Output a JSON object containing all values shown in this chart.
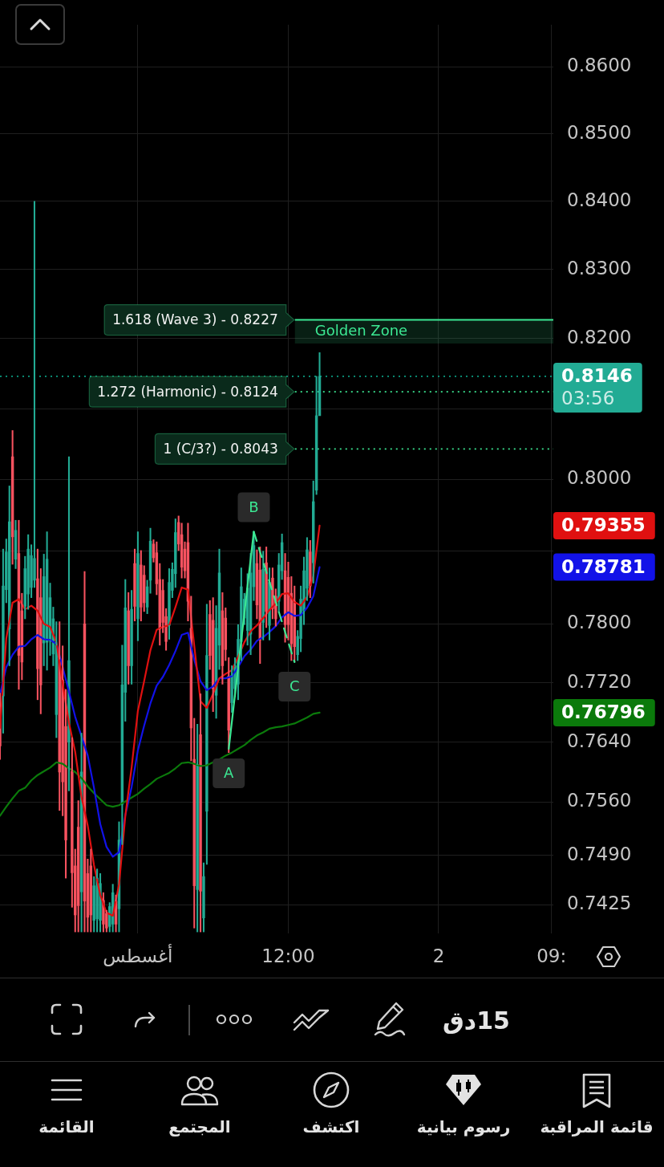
{
  "chart_data": {
    "type": "candlestick",
    "log": true,
    "grid": true,
    "x": [
      "--07-31T13:00",
      "--07-31T13:15",
      "--07-31T13:30",
      "--07-31T13:45",
      "--07-31T14:00",
      "--07-31T14:15",
      "--07-31T14:30",
      "--07-31T14:45",
      "--07-31T15:00",
      "--07-31T15:15",
      "--07-31T15:30",
      "--07-31T15:45",
      "--07-31T16:00",
      "--07-31T16:15",
      "--07-31T16:30",
      "--07-31T16:45",
      "--07-31T17:00",
      "--07-31T17:15",
      "--07-31T17:30",
      "--07-31T17:45",
      "--07-31T18:00",
      "--07-31T18:15",
      "--07-31T18:30",
      "--07-31T18:45",
      "--07-31T19:00",
      "--07-31T19:15",
      "--07-31T19:30",
      "--07-31T19:45",
      "--07-31T20:00",
      "--07-31T20:15",
      "--07-31T20:30",
      "--07-31T20:45",
      "--07-31T21:00",
      "--07-31T21:15",
      "--07-31T21:30",
      "--07-31T21:45",
      "--07-31T22:00",
      "--07-31T22:15",
      "--07-31T22:30",
      "--07-31T22:45",
      "--07-31T23:00",
      "--07-31T23:15",
      "--07-31T23:30",
      "--07-31T23:45",
      "--08-01T00:00",
      "--08-01T00:15",
      "--08-01T00:30",
      "--08-01T00:45",
      "--08-01T01:00",
      "--08-01T01:15",
      "--08-01T01:30",
      "--08-01T01:45",
      "--08-01T02:00",
      "--08-01T02:15",
      "--08-01T02:30",
      "--08-01T02:45",
      "--08-01T03:00",
      "--08-01T03:15",
      "--08-01T03:30",
      "--08-01T03:45",
      "--08-01T04:00",
      "--08-01T04:15",
      "--08-01T04:30",
      "--08-01T04:45",
      "--08-01T05:00",
      "--08-01T05:15",
      "--08-01T05:30",
      "--08-01T05:45",
      "--08-01T06:00",
      "--08-01T06:15",
      "--08-01T06:30",
      "--08-01T06:45",
      "--08-01T07:00",
      "--08-01T07:15",
      "--08-01T07:30",
      "--08-01T07:45",
      "--08-01T08:00",
      "--08-01T08:15",
      "--08-01T08:30",
      "--08-01T08:45",
      "--08-01T09:00",
      "--08-01T09:15",
      "--08-01T09:30",
      "--08-01T09:45",
      "--08-01T10:00",
      "--08-01T10:15",
      "--08-01T10:30",
      "--08-01T10:45",
      "--08-01T11:00",
      "--08-01T11:15",
      "--08-01T11:30",
      "--08-01T11:45",
      "--08-01T12:00",
      "--08-01T12:15",
      "--08-01T12:30",
      "--08-01T12:45",
      "--08-01T13:00",
      "--08-01T13:15",
      "--08-01T13:30",
      "--08-01T13:45",
      "--08-01T14:00",
      "--08-01T14:15",
      "--08-01T14:30"
    ],
    "ohlc": [
      [
        0.7688,
        0.7706,
        0.7617,
        0.7635
      ],
      [
        0.7702,
        0.7903,
        0.7652,
        0.7852
      ],
      [
        0.7847,
        0.7917,
        0.7829,
        0.7899
      ],
      [
        0.7793,
        0.7991,
        0.7743,
        0.7941
      ],
      [
        0.8032,
        0.8069,
        0.7882,
        0.792
      ],
      [
        0.7889,
        0.7943,
        0.7876,
        0.7929
      ],
      [
        0.7897,
        0.7943,
        0.7711,
        0.7757
      ],
      [
        0.7818,
        0.7842,
        0.7724,
        0.7748
      ],
      [
        0.7824,
        0.7893,
        0.7807,
        0.7876
      ],
      [
        0.7841,
        0.7923,
        0.782,
        0.7903
      ],
      [
        0.785,
        0.7909,
        0.7836,
        0.7894
      ],
      [
        0.786,
        0.84,
        0.785,
        0.789
      ],
      [
        0.7862,
        0.7903,
        0.7697,
        0.7739
      ],
      [
        0.7836,
        0.7876,
        0.7678,
        0.7717
      ],
      [
        0.7774,
        0.7896,
        0.7743,
        0.7865
      ],
      [
        0.7775,
        0.7927,
        0.7737,
        0.7889
      ],
      [
        0.7777,
        0.7856,
        0.7757,
        0.7836
      ],
      [
        0.7759,
        0.7823,
        0.7743,
        0.7807
      ],
      [
        0.7677,
        0.7803,
        0.7646,
        0.7771
      ],
      [
        0.7752,
        0.7803,
        0.7549,
        0.76
      ],
      [
        0.7724,
        0.777,
        0.7542,
        0.7587
      ],
      [
        0.7661,
        0.7711,
        0.746,
        0.751
      ],
      [
        0.764,
        0.8032,
        0.7575,
        0.775
      ],
      [
        0.7601,
        0.7646,
        0.7422,
        0.7467
      ],
      [
        0.7476,
        0.7498,
        0.739,
        0.7412
      ],
      [
        0.7527,
        0.7562,
        0.739,
        0.7424
      ],
      [
        0.7442,
        0.7652,
        0.739,
        0.76
      ],
      [
        0.78,
        0.7872,
        0.739,
        0.743
      ],
      [
        0.7466,
        0.7485,
        0.739,
        0.7409
      ],
      [
        0.7476,
        0.7498,
        0.739,
        0.7412
      ],
      [
        0.7405,
        0.7462,
        0.739,
        0.745
      ],
      [
        0.7407,
        0.7472,
        0.739,
        0.746
      ],
      [
        0.7405,
        0.7466,
        0.739,
        0.7453
      ],
      [
        0.7431,
        0.7441,
        0.739,
        0.74
      ],
      [
        0.7414,
        0.7418,
        0.739,
        0.7395
      ],
      [
        0.7397,
        0.7428,
        0.739,
        0.7423
      ],
      [
        0.74,
        0.7452,
        0.739,
        0.7441
      ],
      [
        0.743,
        0.7438,
        0.739,
        0.74
      ],
      [
        0.742,
        0.7534,
        0.739,
        0.751
      ],
      [
        0.7557,
        0.7771,
        0.7504,
        0.7717
      ],
      [
        0.7707,
        0.7861,
        0.7668,
        0.7822
      ],
      [
        0.7818,
        0.7843,
        0.7718,
        0.7743
      ],
      [
        0.7743,
        0.7846,
        0.7718,
        0.782
      ],
      [
        0.7883,
        0.7903,
        0.7804,
        0.7824
      ],
      [
        0.7807,
        0.7927,
        0.7777,
        0.7897
      ],
      [
        0.7881,
        0.7901,
        0.7804,
        0.7823
      ],
      [
        0.7867,
        0.788,
        0.7817,
        0.7829
      ],
      [
        0.7823,
        0.786,
        0.7814,
        0.7851
      ],
      [
        0.786,
        0.7932,
        0.7842,
        0.7914
      ],
      [
        0.791,
        0.7916,
        0.7885,
        0.7891
      ],
      [
        0.7898,
        0.7913,
        0.784,
        0.7855
      ],
      [
        0.7861,
        0.7883,
        0.7771,
        0.7793
      ],
      [
        0.7846,
        0.7861,
        0.7788,
        0.7802
      ],
      [
        0.781,
        0.7821,
        0.7764,
        0.7776
      ],
      [
        0.7798,
        0.7876,
        0.7779,
        0.7857
      ],
      [
        0.7846,
        0.7884,
        0.7836,
        0.7875
      ],
      [
        0.7869,
        0.7945,
        0.785,
        0.7926
      ],
      [
        0.794,
        0.7949,
        0.7901,
        0.791
      ],
      [
        0.7923,
        0.7939,
        0.7863,
        0.7878
      ],
      [
        0.7903,
        0.7913,
        0.7863,
        0.7873
      ],
      [
        0.7912,
        0.7939,
        0.7804,
        0.7831
      ],
      [
        0.7794,
        0.7838,
        0.7615,
        0.7659
      ],
      [
        0.7617,
        0.7672,
        0.7395,
        0.745
      ],
      [
        0.7445,
        0.7664,
        0.739,
        0.761
      ],
      [
        0.765,
        0.7705,
        0.739,
        0.7443
      ],
      [
        0.7408,
        0.748,
        0.739,
        0.7462
      ],
      [
        0.7548,
        0.7827,
        0.7478,
        0.7757
      ],
      [
        0.7813,
        0.7832,
        0.7738,
        0.7757
      ],
      [
        0.7805,
        0.7836,
        0.7681,
        0.7712
      ],
      [
        0.7703,
        0.7825,
        0.7672,
        0.7794
      ],
      [
        0.7771,
        0.7903,
        0.7738,
        0.787
      ],
      [
        0.7818,
        0.7843,
        0.7718,
        0.7743
      ],
      [
        0.7808,
        0.7822,
        0.775,
        0.7765
      ],
      [
        0.7729,
        0.7754,
        0.7626,
        0.7656
      ],
      [
        0.7693,
        0.7743,
        0.768,
        0.773
      ],
      [
        0.7712,
        0.7754,
        0.7701,
        0.7743
      ],
      [
        0.7718,
        0.7799,
        0.7697,
        0.7779
      ],
      [
        0.7776,
        0.7877,
        0.775,
        0.7851
      ],
      [
        0.7808,
        0.7842,
        0.7799,
        0.7834
      ],
      [
        0.7791,
        0.7869,
        0.7771,
        0.7849
      ],
      [
        0.7786,
        0.7897,
        0.7758,
        0.787
      ],
      [
        0.7851,
        0.7927,
        0.7832,
        0.7908
      ],
      [
        0.7883,
        0.7902,
        0.7807,
        0.7826
      ],
      [
        0.7874,
        0.7906,
        0.7746,
        0.7778
      ],
      [
        0.7802,
        0.79,
        0.7778,
        0.7875
      ],
      [
        0.7884,
        0.7906,
        0.7795,
        0.7817
      ],
      [
        0.7798,
        0.7877,
        0.7778,
        0.7857
      ],
      [
        0.7863,
        0.7877,
        0.7807,
        0.7821
      ],
      [
        0.7838,
        0.7848,
        0.7797,
        0.7807
      ],
      [
        0.7831,
        0.7897,
        0.7816,
        0.7881
      ],
      [
        0.7873,
        0.7924,
        0.7861,
        0.7912
      ],
      [
        0.7873,
        0.7897,
        0.7775,
        0.7799
      ],
      [
        0.7864,
        0.7885,
        0.7778,
        0.7799
      ],
      [
        0.7842,
        0.7865,
        0.775,
        0.7773
      ],
      [
        0.7831,
        0.7852,
        0.7748,
        0.7769
      ],
      [
        0.7758,
        0.7791,
        0.775,
        0.7783
      ],
      [
        0.778,
        0.7852,
        0.7762,
        0.7834
      ],
      [
        0.7818,
        0.7892,
        0.7799,
        0.7873
      ],
      [
        0.7849,
        0.7919,
        0.7832,
        0.7902
      ],
      [
        0.7899,
        0.7915,
        0.7836,
        0.7852
      ],
      [
        0.7884,
        0.7998,
        0.7856,
        0.7969
      ],
      [
        0.7985,
        0.8146,
        0.7979,
        0.809
      ],
      [
        0.809,
        0.818,
        0.809,
        0.8146
      ]
    ],
    "colors": [
      "#f7525f",
      "#22ab94",
      "#22ab94",
      "#22ab94",
      "#f7525f",
      "#22ab94",
      "#f7525f",
      "#f7525f",
      "#22ab94",
      "#22ab94",
      "#22ab94",
      "#22ab94",
      "#f7525f",
      "#f7525f",
      "#22ab94",
      "#22ab94",
      "#22ab94",
      "#22ab94",
      "#22ab94",
      "#f7525f",
      "#f7525f",
      "#f7525f",
      "#22ab94",
      "#f7525f",
      "#f7525f",
      "#f7525f",
      "#22ab94",
      "#f7525f",
      "#f7525f",
      "#f7525f",
      "#22ab94",
      "#22ab94",
      "#22ab94",
      "#f7525f",
      "#f7525f",
      "#22ab94",
      "#22ab94",
      "#f7525f",
      "#22ab94",
      "#22ab94",
      "#22ab94",
      "#f7525f",
      "#22ab94",
      "#f7525f",
      "#22ab94",
      "#f7525f",
      "#f7525f",
      "#22ab94",
      "#22ab94",
      "#f7525f",
      "#f7525f",
      "#f7525f",
      "#f7525f",
      "#f7525f",
      "#22ab94",
      "#22ab94",
      "#22ab94",
      "#f7525f",
      "#f7525f",
      "#f7525f",
      "#f7525f",
      "#f7525f",
      "#f7525f",
      "#22ab94",
      "#f7525f",
      "#22ab94",
      "#22ab94",
      "#f7525f",
      "#f7525f",
      "#22ab94",
      "#22ab94",
      "#f7525f",
      "#f7525f",
      "#f7525f",
      "#22ab94",
      "#22ab94",
      "#22ab94",
      "#22ab94",
      "#22ab94",
      "#22ab94",
      "#22ab94",
      "#22ab94",
      "#f7525f",
      "#f7525f",
      "#22ab94",
      "#f7525f",
      "#22ab94",
      "#f7525f",
      "#f7525f",
      "#22ab94",
      "#22ab94",
      "#f7525f",
      "#f7525f",
      "#f7525f",
      "#f7525f",
      "#22ab94",
      "#22ab94",
      "#22ab94",
      "#22ab94",
      "#f7525f",
      "#22ab94",
      "#22ab94",
      "#22ab94"
    ],
    "value_labels": [
      null,
      null,
      null,
      null,
      null,
      null,
      null,
      null,
      null,
      null,
      null,
      null,
      null,
      null,
      null,
      null,
      null,
      null,
      null,
      null,
      null,
      null,
      null,
      null,
      null,
      null,
      null,
      null,
      null,
      null,
      null,
      null,
      null,
      null,
      null,
      null,
      null,
      null,
      null,
      null,
      null,
      null,
      null,
      null,
      null,
      null,
      null,
      null,
      null,
      null,
      null,
      null,
      null,
      null,
      null,
      null,
      null,
      null,
      null,
      null,
      null,
      null,
      null,
      null,
      null,
      null,
      null,
      null,
      null,
      null,
      null,
      null,
      null,
      null,
      null,
      null,
      null,
      null,
      null,
      null,
      null,
      null,
      null,
      null,
      null,
      null,
      null,
      null,
      null,
      null,
      null,
      null,
      null,
      null,
      null,
      null,
      null,
      null,
      null,
      null,
      null,
      null,
      "0.8146"
    ],
    "series": [
      {
        "type": "line",
        "color": "#e01010",
        "x": [
          "--07-31T13:00",
          "--07-31T13:30",
          "--07-31T14:00",
          "--07-31T14:30",
          "--07-31T15:00",
          "--07-31T15:30",
          "--07-31T16:00",
          "--07-31T16:30",
          "--07-31T17:00",
          "--07-31T17:30",
          "--07-31T18:00",
          "--07-31T18:30",
          "--07-31T19:00",
          "--07-31T19:30",
          "--07-31T20:00",
          "--07-31T20:30",
          "--07-31T21:00",
          "--07-31T21:30",
          "--07-31T22:00",
          "--07-31T22:30",
          "--07-31T23:00",
          "--07-31T23:30",
          "--08-01T00:00",
          "--08-01T00:30",
          "--08-01T01:00",
          "--08-01T01:30",
          "--08-01T02:00",
          "--08-01T02:30",
          "--08-01T03:00",
          "--08-01T03:30",
          "--08-01T04:00",
          "--08-01T04:30",
          "--08-01T05:00",
          "--08-01T05:30",
          "--08-01T06:00",
          "--08-01T06:30",
          "--08-01T07:00",
          "--08-01T07:30",
          "--08-01T08:00",
          "--08-01T08:30",
          "--08-01T09:00",
          "--08-01T09:30",
          "--08-01T10:00",
          "--08-01T10:30",
          "--08-01T11:00",
          "--08-01T11:30",
          "--08-01T12:00",
          "--08-01T12:30",
          "--08-01T13:00",
          "--08-01T13:30",
          "--08-01T14:00",
          "--08-01T14:30"
        ],
        "values": [
          0.7659,
          0.778,
          0.7829,
          0.7834,
          0.782,
          0.7825,
          0.7818,
          0.78,
          0.7796,
          0.7775,
          0.7719,
          0.7666,
          0.7627,
          0.7567,
          0.7529,
          0.7477,
          0.7438,
          0.7415,
          0.7411,
          0.7452,
          0.7542,
          0.7606,
          0.7682,
          0.7722,
          0.7764,
          0.7792,
          0.7796,
          0.7798,
          0.7823,
          0.785,
          0.7847,
          0.777,
          0.7695,
          0.7686,
          0.7705,
          0.7726,
          0.7732,
          0.7737,
          0.7755,
          0.7775,
          0.779,
          0.7798,
          0.7808,
          0.7819,
          0.7828,
          0.7841,
          0.7842,
          0.783,
          0.7825,
          0.7837,
          0.7866,
          0.79355
        ]
      },
      {
        "type": "line",
        "color": "#1212e8",
        "x": [
          "--07-31T13:00",
          "--07-31T13:30",
          "--07-31T14:00",
          "--07-31T14:30",
          "--07-31T15:00",
          "--07-31T15:30",
          "--07-31T16:00",
          "--07-31T16:30",
          "--07-31T17:00",
          "--07-31T17:30",
          "--07-31T18:00",
          "--07-31T18:30",
          "--07-31T19:00",
          "--07-31T19:30",
          "--07-31T20:00",
          "--07-31T20:30",
          "--07-31T21:00",
          "--07-31T21:30",
          "--07-31T22:00",
          "--07-31T22:30",
          "--07-31T23:00",
          "--07-31T23:30",
          "--08-01T00:00",
          "--08-01T00:30",
          "--08-01T01:00",
          "--08-01T01:30",
          "--08-01T02:00",
          "--08-01T02:30",
          "--08-01T03:00",
          "--08-01T03:30",
          "--08-01T04:00",
          "--08-01T04:30",
          "--08-01T05:00",
          "--08-01T05:30",
          "--08-01T06:00",
          "--08-01T06:30",
          "--08-01T07:00",
          "--08-01T07:30",
          "--08-01T08:00",
          "--08-01T08:30",
          "--08-01T09:00",
          "--08-01T09:30",
          "--08-01T10:00",
          "--08-01T10:30",
          "--08-01T11:00",
          "--08-01T11:30",
          "--08-01T12:00",
          "--08-01T12:30",
          "--08-01T13:00",
          "--08-01T13:30",
          "--08-01T14:00",
          "--08-01T14:30"
        ],
        "values": [
          0.7704,
          0.7741,
          0.7758,
          0.7769,
          0.777,
          0.7779,
          0.7785,
          0.7779,
          0.7778,
          0.7773,
          0.7741,
          0.7708,
          0.7674,
          0.7648,
          0.7622,
          0.7579,
          0.7531,
          0.7501,
          0.7488,
          0.7494,
          0.7543,
          0.758,
          0.7629,
          0.7662,
          0.7692,
          0.7716,
          0.7728,
          0.7744,
          0.7763,
          0.7785,
          0.7788,
          0.7751,
          0.7722,
          0.771,
          0.7715,
          0.7726,
          0.7726,
          0.7729,
          0.7741,
          0.7756,
          0.7765,
          0.7777,
          0.7782,
          0.7789,
          0.7797,
          0.7809,
          0.7816,
          0.7811,
          0.7812,
          0.7822,
          0.7838,
          0.78781
        ]
      },
      {
        "type": "line",
        "color": "#0b7a0b",
        "x": [
          "--07-31T13:00",
          "--07-31T13:30",
          "--07-31T14:00",
          "--07-31T14:30",
          "--07-31T15:00",
          "--07-31T15:30",
          "--07-31T16:00",
          "--07-31T16:30",
          "--07-31T17:00",
          "--07-31T17:30",
          "--07-31T18:00",
          "--07-31T18:30",
          "--07-31T19:00",
          "--07-31T19:30",
          "--07-31T20:00",
          "--07-31T20:30",
          "--07-31T21:00",
          "--07-31T21:30",
          "--07-31T22:00",
          "--07-31T22:30",
          "--07-31T23:00",
          "--07-31T23:30",
          "--08-01T00:00",
          "--08-01T00:30",
          "--08-01T01:00",
          "--08-01T01:30",
          "--08-01T02:00",
          "--08-01T02:30",
          "--08-01T03:00",
          "--08-01T03:30",
          "--08-01T04:00",
          "--08-01T04:30",
          "--08-01T05:00",
          "--08-01T05:30",
          "--08-01T06:00",
          "--08-01T06:30",
          "--08-01T07:00",
          "--08-01T07:30",
          "--08-01T08:00",
          "--08-01T08:30",
          "--08-01T09:00",
          "--08-01T09:30",
          "--08-01T10:00",
          "--08-01T10:30",
          "--08-01T11:00",
          "--08-01T11:30",
          "--08-01T12:00",
          "--08-01T12:30",
          "--08-01T13:00",
          "--08-01T13:30",
          "--08-01T14:00",
          "--08-01T14:30"
        ],
        "values": [
          0.7542,
          0.7554,
          0.7565,
          0.7575,
          0.7579,
          0.7589,
          0.7596,
          0.7601,
          0.7606,
          0.7613,
          0.7611,
          0.7605,
          0.76,
          0.7592,
          0.7581,
          0.7572,
          0.7564,
          0.7556,
          0.7554,
          0.7556,
          0.7561,
          0.7566,
          0.7571,
          0.7578,
          0.7584,
          0.7591,
          0.7595,
          0.7599,
          0.7605,
          0.7612,
          0.7613,
          0.7611,
          0.7608,
          0.7609,
          0.7613,
          0.7617,
          0.7622,
          0.7626,
          0.7631,
          0.7636,
          0.7643,
          0.7649,
          0.7653,
          0.7658,
          0.766,
          0.7661,
          0.7663,
          0.7665,
          0.7669,
          0.7673,
          0.7678,
          0.76796
        ]
      },
      {
        "type": "line",
        "color": "#3ce893",
        "x": [
          "--08-01T07:15",
          "--08-01T09:15"
        ],
        "values": [
          0.7631,
          0.7927
        ]
      },
      {
        "type": "line",
        "color": "#3ce893",
        "x": [
          "--08-01T09:15",
          "--08-01T12:30"
        ],
        "values": [
          0.7927,
          0.7748
        ],
        "line_style": "dashed"
      }
    ],
    "xlim": [
      "--07-31T13:00",
      "--08-02T09:09"
    ],
    "xticks": [
      {
        "value": "--08-01T00:00",
        "label": "أغسطس"
      },
      {
        "value": "--08-01T12:00",
        "label": "12:00"
      },
      {
        "value": "--08-02T00:00",
        "label": "2"
      },
      {
        "value": "--08-02T09:00",
        "label": "09:"
      }
    ],
    "ylim": [
      0.7388,
      0.8664
    ],
    "yticks": [
      {
        "value": 0.86,
        "label": "0.8600"
      },
      {
        "value": 0.85,
        "label": "0.8500"
      },
      {
        "value": 0.84,
        "label": "0.8400"
      },
      {
        "value": 0.83,
        "label": "0.8300"
      },
      {
        "value": 0.82,
        "label": "0.8200"
      },
      {
        "value": 0.81,
        "label": null
      },
      {
        "value": 0.8,
        "label": "0.8000"
      },
      {
        "value": 0.79,
        "label": null
      },
      {
        "value": 0.78,
        "label": "0.7800"
      },
      {
        "value": 0.772,
        "label": "0.7720"
      },
      {
        "value": 0.764,
        "label": "0.7640"
      },
      {
        "value": 0.756,
        "label": "0.7560"
      },
      {
        "value": 0.749,
        "label": "0.7490"
      },
      {
        "value": 0.7425,
        "label": "0.7425"
      }
    ],
    "ref_lines": [
      {
        "axis": "y",
        "value": 0.8227,
        "label": "1.618 (Wave 3) - 0.8227",
        "color": "#3ce893",
        "line_style": "solid"
      },
      {
        "axis": "y",
        "value": 0.8124,
        "label": "1.272 (Harmonic) - 0.8124",
        "color": "#3ce893",
        "line_style": "dotted"
      },
      {
        "axis": "y",
        "value": 0.8043,
        "label": "1 (C/3?) - 0.8043",
        "color": "#3ce893",
        "line_style": "dotted"
      },
      {
        "axis": "y",
        "value": 0.8146,
        "color": "#0b9b80",
        "line_style": "dotted"
      }
    ],
    "bands": [
      {
        "axis": "y",
        "from": 0.8193,
        "to": 0.8227,
        "label": "Golden Zone",
        "color": "#3ce893"
      }
    ],
    "annotations": [
      {
        "text": "A",
        "x": "--08-01T07:15",
        "y": 0.7631
      },
      {
        "text": "B",
        "x": "--08-01T09:15",
        "y": 0.7927
      },
      {
        "text": "C",
        "x": "--08-01T12:30",
        "y": 0.7748
      },
      "03:56",
      "0.79355",
      "0.78781",
      "0.76796",
      "15دق",
      "القائمة",
      "المجتمع",
      "اكتشف",
      "رسوم بيانية",
      "قائمة المراقبة"
    ]
  }
}
